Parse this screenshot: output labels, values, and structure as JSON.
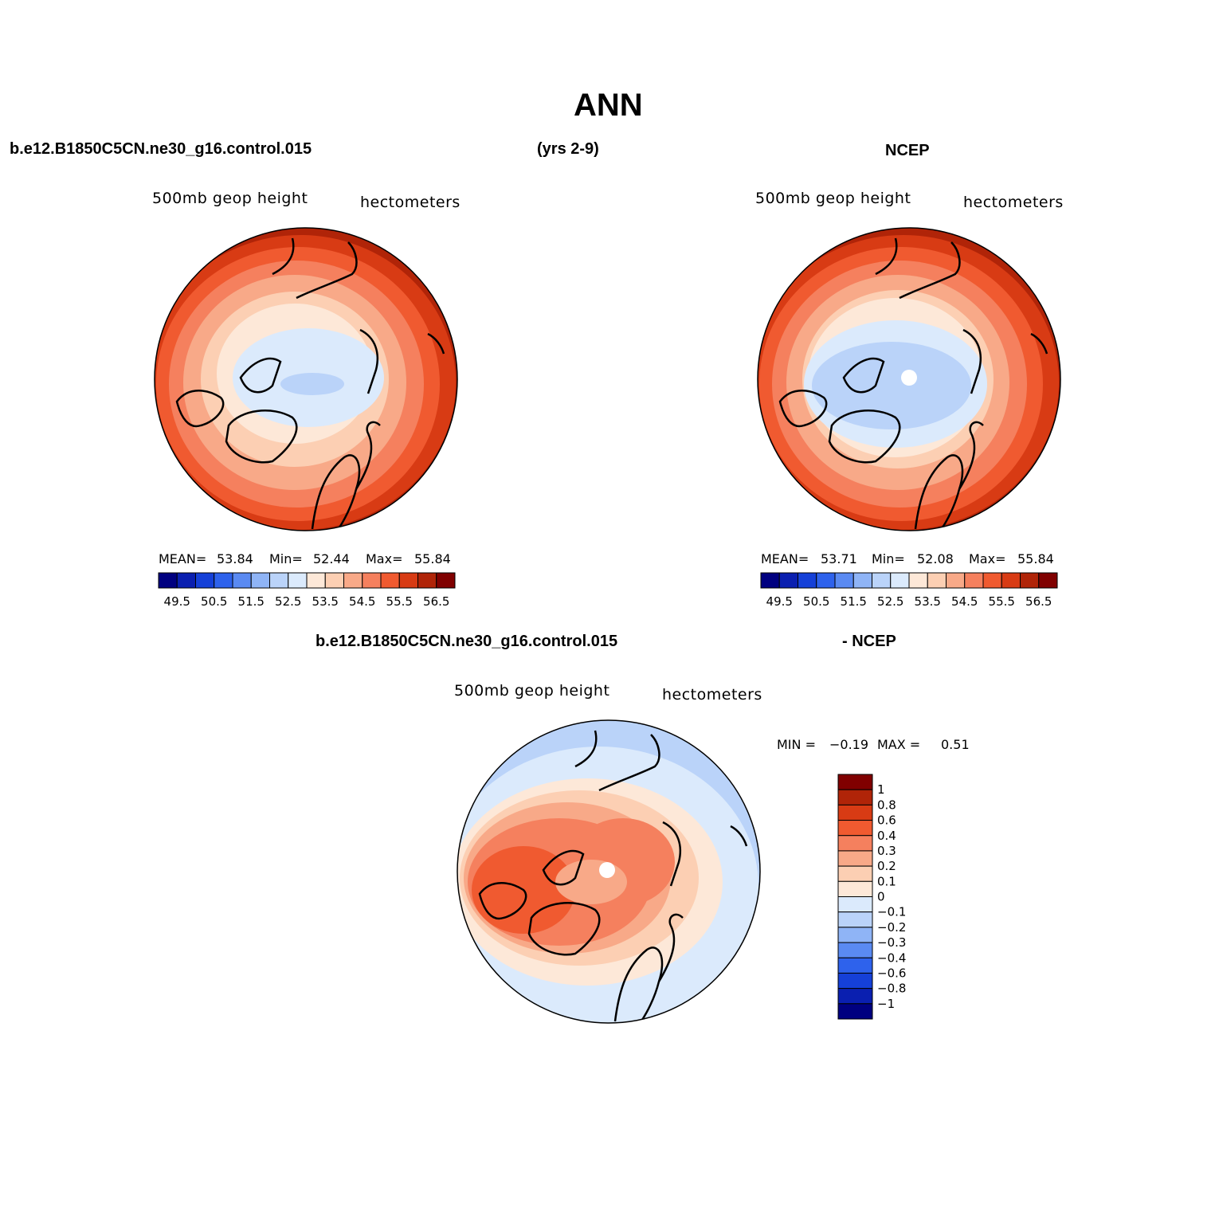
{
  "title": "ANN",
  "header": {
    "case": "b.e12.B1850C5CN.ne30_g16.control.015",
    "years": "(yrs 2-9)",
    "obs": "NCEP",
    "diff_case": "b.e12.B1850C5CN.ne30_g16.control.015",
    "diff_obs": "- NCEP"
  },
  "panels": [
    {
      "variable": "500mb geop height",
      "units": "hectometers",
      "stats": {
        "mean_label": "MEAN=",
        "mean": "53.84",
        "min_label": "Min=",
        "min": "52.44",
        "max_label": "Max=",
        "max": "55.84"
      }
    },
    {
      "variable": "500mb geop height",
      "units": "hectometers",
      "stats": {
        "mean_label": "MEAN=",
        "mean": "53.71",
        "min_label": "Min=",
        "min": "52.08",
        "max_label": "Max=",
        "max": "55.84"
      }
    },
    {
      "variable": "500mb geop height",
      "units": "hectometers",
      "stats": {
        "min_label": "MIN =",
        "min": "−0.19",
        "max_label": "MAX =",
        "max": "0.51"
      }
    }
  ],
  "chart_data": [
    {
      "type": "heatmap",
      "name": "model",
      "colorbar_labels": [
        "49.5",
        "50.5",
        "51.5",
        "52.5",
        "53.5",
        "54.5",
        "55.5",
        "56.5"
      ],
      "colors": [
        "#000080",
        "#0a1fb0",
        "#1540d8",
        "#2e62ec",
        "#5a8af2",
        "#8fb4f6",
        "#bad3f9",
        "#dbeafc",
        "#fde8d8",
        "#fccfb3",
        "#f8a988",
        "#f5805e",
        "#f05a30",
        "#d83b14",
        "#b02408",
        "#800000"
      ]
    },
    {
      "type": "heatmap",
      "name": "obs",
      "colorbar_labels": [
        "49.5",
        "50.5",
        "51.5",
        "52.5",
        "53.5",
        "54.5",
        "55.5",
        "56.5"
      ],
      "colors": [
        "#000080",
        "#0a1fb0",
        "#1540d8",
        "#2e62ec",
        "#5a8af2",
        "#8fb4f6",
        "#bad3f9",
        "#dbeafc",
        "#fde8d8",
        "#fccfb3",
        "#f8a988",
        "#f5805e",
        "#f05a30",
        "#d83b14",
        "#b02408",
        "#800000"
      ]
    },
    {
      "type": "heatmap",
      "name": "difference",
      "colorbar_labels": [
        "1",
        "0.8",
        "0.6",
        "0.4",
        "0.3",
        "0.2",
        "0.1",
        "0",
        "−0.1",
        "−0.2",
        "−0.3",
        "−0.4",
        "−0.6",
        "−0.8",
        "−1"
      ],
      "colors": [
        "#800000",
        "#b02408",
        "#d83b14",
        "#f05a30",
        "#f5805e",
        "#f8a988",
        "#fccfb3",
        "#fde8d8",
        "#dbeafc",
        "#bad3f9",
        "#8fb4f6",
        "#5a8af2",
        "#2e62ec",
        "#1540d8",
        "#0a1fb0",
        "#000080"
      ]
    }
  ]
}
